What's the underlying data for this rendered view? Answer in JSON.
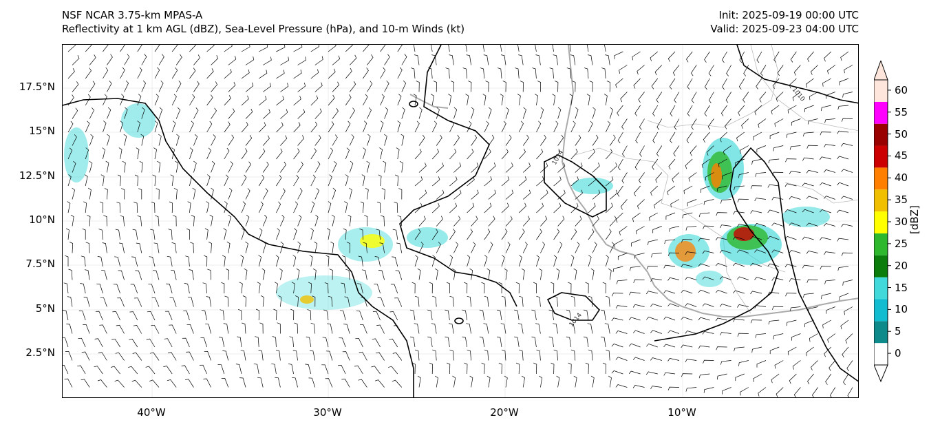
{
  "header": {
    "title_line1": "NSF NCAR 3.75-km MPAS-A",
    "title_line2": "Reflectivity at 1 km AGL (dBZ), Sea-Level Pressure (hPa), and 10-m Winds (kt)",
    "init": "Init: 2025-09-19 00:00 UTC",
    "valid": "Valid: 2025-09-23 04:00 UTC"
  },
  "axes": {
    "lat_labels": [
      "17.5°N",
      "15°N",
      "12.5°N",
      "10°N",
      "7.5°N",
      "5°N",
      "2.5°N"
    ],
    "lon_labels": [
      "40°W",
      "30°W",
      "20°W",
      "10°W"
    ]
  },
  "contours": {
    "labels": [
      "1010",
      "1014",
      "1014"
    ]
  },
  "colorbar": {
    "unit": "[dBZ]",
    "ticks": [
      "0",
      "5",
      "10",
      "15",
      "20",
      "25",
      "30",
      "35",
      "40",
      "45",
      "50",
      "55",
      "60"
    ],
    "colors": [
      "#ffffff",
      "#0f8a8a",
      "#12bcd0",
      "#41d9d9",
      "#0a7d0a",
      "#2eb82e",
      "#ffff00",
      "#f0c000",
      "#ff8000",
      "#cc0000",
      "#990000",
      "#ff00ff",
      "#ffe6dc"
    ]
  }
}
